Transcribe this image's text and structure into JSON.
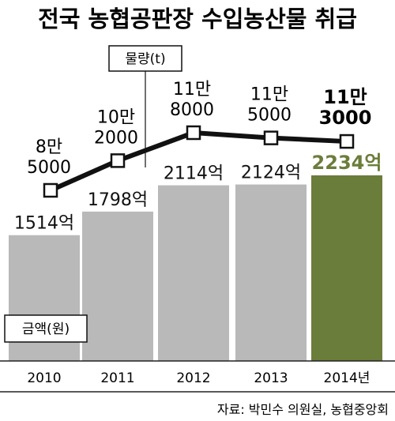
{
  "title": "전국 농협공판장 수입농산물 취급",
  "source": "자료: 박민수 의원실, 농협중앙회",
  "chart_data": {
    "type": "bar",
    "categories": [
      "2010",
      "2011",
      "2012",
      "2013",
      "2014년"
    ],
    "series": [
      {
        "name": "금액(원)",
        "kind": "bar",
        "values": [
          151400000000,
          179800000000,
          211400000000,
          212400000000,
          223400000000
        ],
        "labels": [
          "1514억",
          "1798억",
          "2114억",
          "2124억",
          "2234억"
        ],
        "color": "#b9b9b9",
        "highlight_color": "#6b7d3a",
        "highlight_label_color": "#6b7d3a"
      },
      {
        "name": "물량(t)",
        "kind": "line",
        "values": [
          85000,
          102000,
          118000,
          115000,
          113000
        ],
        "labels": [
          [
            "8만",
            "5000"
          ],
          [
            "10만",
            "2000"
          ],
          [
            "11만",
            "8000"
          ],
          [
            "11만",
            "5000"
          ],
          [
            "11만",
            "3000"
          ]
        ],
        "color": "#111111"
      }
    ],
    "grid": false,
    "legend": "none"
  }
}
